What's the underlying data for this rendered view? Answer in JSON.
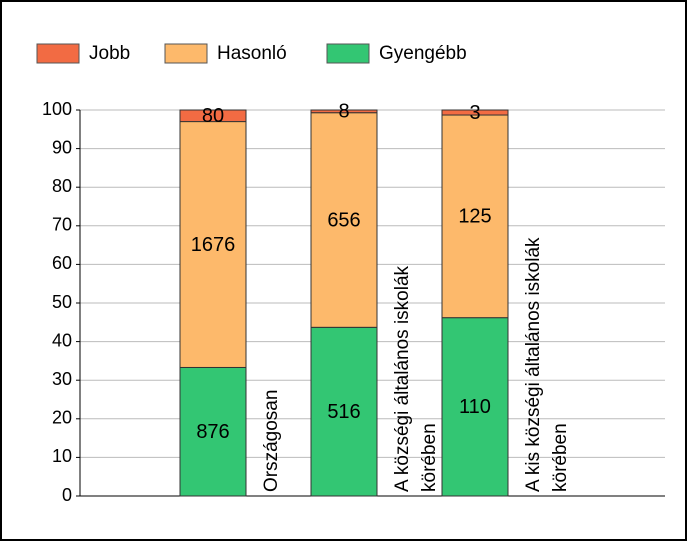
{
  "chart_data": {
    "type": "stacked-bar",
    "categories": [
      [
        "Országosan"
      ],
      [
        "A községi általános iskolák",
        "körében"
      ],
      [
        "A kis községi általános iskolák",
        "körében"
      ]
    ],
    "series": [
      {
        "name": "Gyengébb",
        "color": "#33c673",
        "values": [
          33.3,
          43.7,
          46.2
        ],
        "counts": [
          876,
          516,
          110
        ]
      },
      {
        "name": "Hasonló",
        "color": "#fdb96b",
        "values": [
          63.7,
          55.6,
          52.5
        ],
        "counts": [
          1676,
          656,
          125
        ]
      },
      {
        "name": "Jobb",
        "color": "#f26b43",
        "values": [
          3.0,
          0.7,
          1.3
        ],
        "counts": [
          80,
          8,
          3
        ]
      }
    ],
    "legend_order": [
      2,
      1,
      0
    ],
    "ylim": [
      0,
      100
    ],
    "yticks": [
      0,
      10,
      20,
      30,
      40,
      50,
      60,
      70,
      80,
      90,
      100
    ],
    "grid": true
  }
}
